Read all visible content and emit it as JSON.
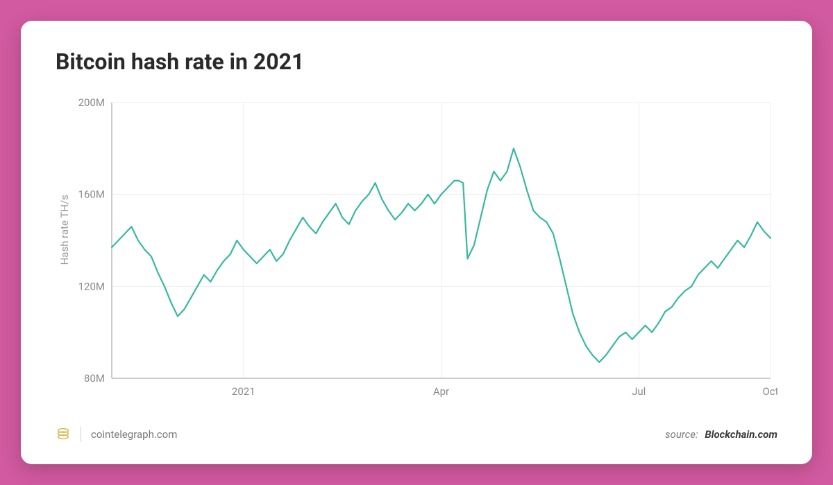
{
  "chart": {
    "type": "line",
    "title": "Bitcoin hash rate in 2021",
    "ylabel": "Hash rate TH/s",
    "background_color": "#ffffff",
    "page_background": "#d25aa0",
    "line_color": "#36b8a3",
    "line_width": 2.2,
    "grid_color": "#eeeeee",
    "axis_color": "#bbbbbb",
    "tick_color": "#8a8a8a",
    "title_color": "#2a2a2a",
    "title_fontsize": 32,
    "label_fontsize": 15,
    "ylim": [
      80,
      200
    ],
    "ytick_step": 40,
    "yticks": [
      {
        "v": 80,
        "label": "80M"
      },
      {
        "v": 120,
        "label": "120M"
      },
      {
        "v": 160,
        "label": "160M"
      },
      {
        "v": 200,
        "label": "200M"
      }
    ],
    "xlim": [
      0,
      300
    ],
    "xticks": [
      {
        "x": 60,
        "label": "2021"
      },
      {
        "x": 150,
        "label": "Apr"
      },
      {
        "x": 240,
        "label": "Jul"
      },
      {
        "x": 300,
        "label": "Oct"
      }
    ],
    "series": [
      {
        "name": "hash_rate",
        "color": "#36b8a3",
        "points": [
          [
            0,
            137
          ],
          [
            3,
            140
          ],
          [
            6,
            143
          ],
          [
            9,
            146
          ],
          [
            12,
            140
          ],
          [
            15,
            136
          ],
          [
            18,
            133
          ],
          [
            21,
            126
          ],
          [
            24,
            120
          ],
          [
            27,
            113
          ],
          [
            30,
            107
          ],
          [
            33,
            110
          ],
          [
            36,
            115
          ],
          [
            39,
            120
          ],
          [
            42,
            125
          ],
          [
            45,
            122
          ],
          [
            48,
            127
          ],
          [
            51,
            131
          ],
          [
            54,
            134
          ],
          [
            57,
            140
          ],
          [
            60,
            136
          ],
          [
            63,
            133
          ],
          [
            66,
            130
          ],
          [
            69,
            133
          ],
          [
            72,
            136
          ],
          [
            75,
            131
          ],
          [
            78,
            134
          ],
          [
            81,
            140
          ],
          [
            84,
            145
          ],
          [
            87,
            150
          ],
          [
            90,
            146
          ],
          [
            93,
            143
          ],
          [
            96,
            148
          ],
          [
            99,
            152
          ],
          [
            102,
            156
          ],
          [
            105,
            150
          ],
          [
            108,
            147
          ],
          [
            111,
            153
          ],
          [
            114,
            157
          ],
          [
            117,
            160
          ],
          [
            120,
            165
          ],
          [
            123,
            158
          ],
          [
            126,
            153
          ],
          [
            129,
            149
          ],
          [
            132,
            152
          ],
          [
            135,
            156
          ],
          [
            138,
            153
          ],
          [
            141,
            156
          ],
          [
            144,
            160
          ],
          [
            147,
            156
          ],
          [
            150,
            160
          ],
          [
            153,
            163
          ],
          [
            156,
            166
          ],
          [
            158,
            166
          ],
          [
            160,
            165
          ],
          [
            162,
            132
          ],
          [
            165,
            138
          ],
          [
            168,
            150
          ],
          [
            171,
            162
          ],
          [
            174,
            170
          ],
          [
            177,
            166
          ],
          [
            180,
            170
          ],
          [
            183,
            180
          ],
          [
            186,
            172
          ],
          [
            189,
            162
          ],
          [
            192,
            153
          ],
          [
            195,
            150
          ],
          [
            198,
            148
          ],
          [
            201,
            143
          ],
          [
            204,
            132
          ],
          [
            207,
            120
          ],
          [
            210,
            108
          ],
          [
            213,
            100
          ],
          [
            216,
            94
          ],
          [
            219,
            90
          ],
          [
            222,
            87
          ],
          [
            225,
            90
          ],
          [
            228,
            94
          ],
          [
            231,
            98
          ],
          [
            234,
            100
          ],
          [
            237,
            97
          ],
          [
            240,
            100
          ],
          [
            243,
            103
          ],
          [
            246,
            100
          ],
          [
            249,
            104
          ],
          [
            252,
            109
          ],
          [
            255,
            111
          ],
          [
            258,
            115
          ],
          [
            261,
            118
          ],
          [
            264,
            120
          ],
          [
            267,
            125
          ],
          [
            270,
            128
          ],
          [
            273,
            131
          ],
          [
            276,
            128
          ],
          [
            279,
            132
          ],
          [
            282,
            136
          ],
          [
            285,
            140
          ],
          [
            288,
            137
          ],
          [
            291,
            142
          ],
          [
            294,
            148
          ],
          [
            297,
            144
          ],
          [
            300,
            141
          ]
        ]
      }
    ]
  },
  "footer": {
    "site": "cointelegraph.com",
    "source_label": "source:",
    "source_name": "Blockchain.com"
  }
}
